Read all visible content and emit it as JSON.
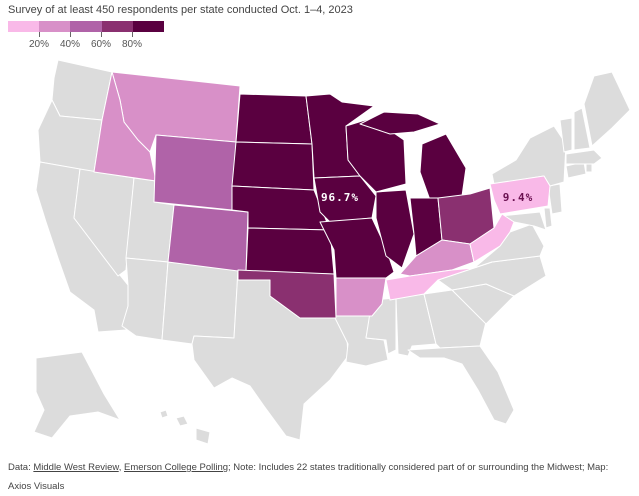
{
  "subtitle": "Survey of at least 450 respondents per state conducted Oct. 1–4, 2023",
  "legend": {
    "colors": [
      "#f9b9e8",
      "#d890c8",
      "#b063a8",
      "#8a3070",
      "#5a0040"
    ],
    "labels": [
      "20%",
      "40%",
      "60%",
      "80%"
    ]
  },
  "map_labels": {
    "iowa_value": "96.7%",
    "pennsylvania_value": "9.4%"
  },
  "map_colors": {
    "no_data": "#dcdcdc",
    "tier_1": "#f9b9e8",
    "tier_2": "#d890c8",
    "tier_3": "#b063a8",
    "tier_4": "#8a3070",
    "tier_5": "#5a0040",
    "border": "#ffffff"
  },
  "source": {
    "prefix": "Data: ",
    "link1": "Middle West Review",
    "sep": ", ",
    "link2": "Emerson College Polling",
    "rest": "; Note: Includes 22 states traditionally considered part of or surrounding the Midwest; Map:",
    "line2": "Axios Visuals"
  }
}
